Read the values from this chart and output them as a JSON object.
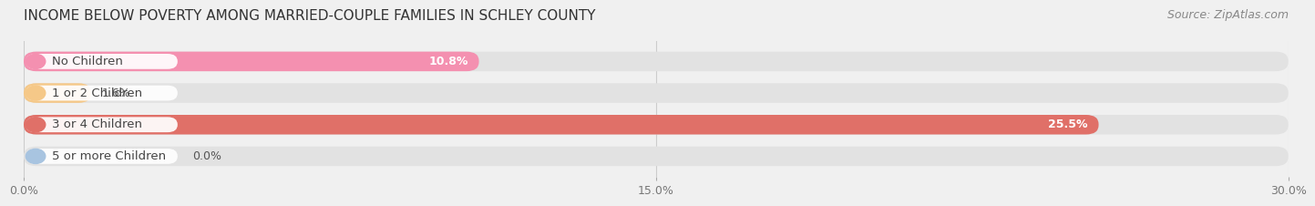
{
  "title": "INCOME BELOW POVERTY AMONG MARRIED-COUPLE FAMILIES IN SCHLEY COUNTY",
  "source": "Source: ZipAtlas.com",
  "categories": [
    "No Children",
    "1 or 2 Children",
    "3 or 4 Children",
    "5 or more Children"
  ],
  "values": [
    10.8,
    1.6,
    25.5,
    0.0
  ],
  "bar_colors": [
    "#f490b0",
    "#f5c888",
    "#e07068",
    "#a8c4e0"
  ],
  "xlim": [
    0,
    30.0
  ],
  "xticks": [
    0.0,
    15.0,
    30.0
  ],
  "xticklabels": [
    "0.0%",
    "15.0%",
    "30.0%"
  ],
  "background_color": "#f0f0f0",
  "bar_background_color": "#e2e2e2",
  "title_fontsize": 11,
  "source_fontsize": 9,
  "tick_fontsize": 9,
  "label_fontsize": 9.5,
  "value_fontsize": 9,
  "bar_height": 0.62,
  "bar_gap": 0.38
}
